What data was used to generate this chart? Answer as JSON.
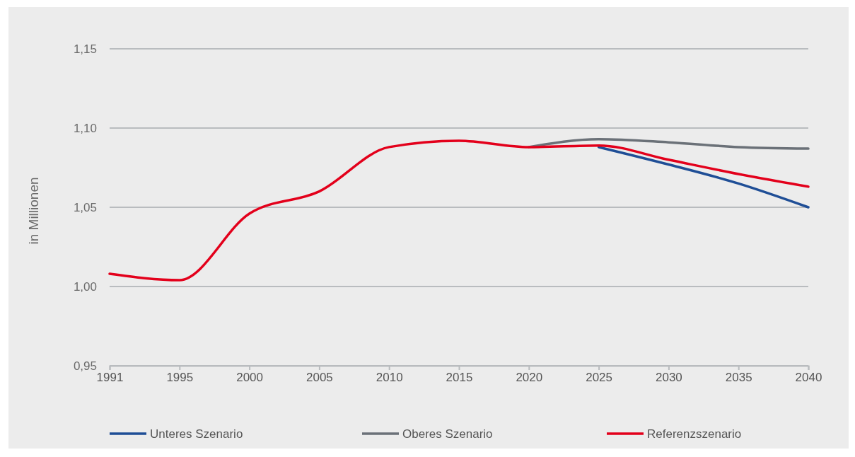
{
  "chart_data": {
    "type": "line",
    "ylabel": "in Millionen",
    "categories": [
      "1991",
      "1995",
      "2000",
      "2005",
      "2010",
      "2015",
      "2020",
      "2025",
      "2030",
      "2035",
      "2040"
    ],
    "series": [
      {
        "name": "Unteres Szenario",
        "color": "#1f4e96",
        "values": [
          null,
          null,
          null,
          null,
          null,
          null,
          null,
          1.088,
          1.077,
          1.065,
          1.05
        ]
      },
      {
        "name": "Oberes Szenario",
        "color": "#6b7178",
        "values": [
          null,
          null,
          null,
          null,
          null,
          null,
          1.088,
          1.093,
          1.091,
          1.088,
          1.087
        ]
      },
      {
        "name": "Referenzszenario",
        "color": "#e3001b",
        "values": [
          1.008,
          1.004,
          1.046,
          1.06,
          1.088,
          1.092,
          1.088,
          1.089,
          1.08,
          1.071,
          1.063
        ]
      }
    ],
    "ylim": [
      0.95,
      1.15
    ],
    "yticks": [
      {
        "value": 0.95,
        "label": "0,95"
      },
      {
        "value": 1.0,
        "label": "1,00"
      },
      {
        "value": 1.05,
        "label": "1,05"
      },
      {
        "value": 1.1,
        "label": "1,10"
      },
      {
        "value": 1.15,
        "label": "1,15"
      }
    ],
    "grid": "y",
    "legend": "bottom",
    "marker": "none",
    "line_style": "solid"
  }
}
